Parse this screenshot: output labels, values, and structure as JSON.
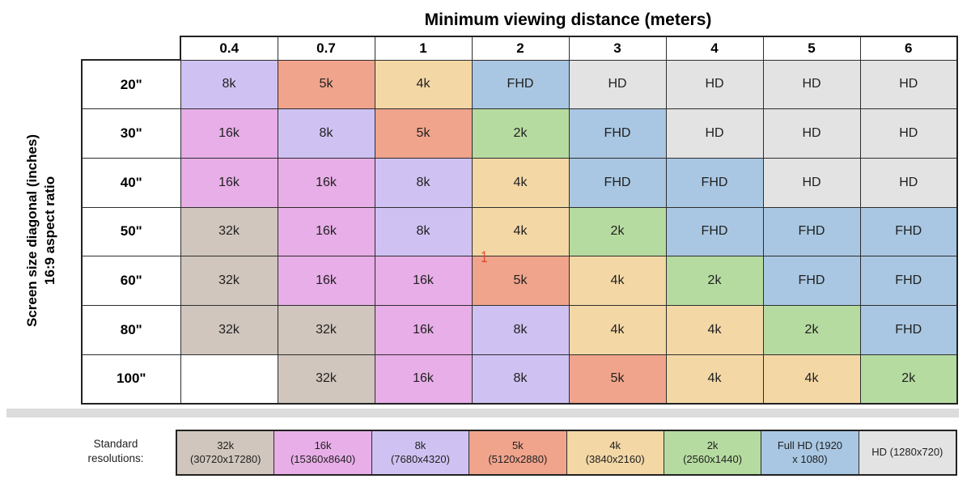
{
  "title": "Minimum viewing distance (meters)",
  "y_axis": {
    "line1": "Screen size diagonal (inches)",
    "line2": "16:9 aspect ratio"
  },
  "legend_label": "Standard\nresolutions:",
  "chart_data": {
    "type": "heatmap",
    "title": "Minimum viewing distance (meters)",
    "x_axis_label": "Minimum viewing distance (meters)",
    "y_axis_label": "Screen size diagonal (inches), 16:9 aspect ratio",
    "columns": [
      "0.4",
      "0.7",
      "1",
      "2",
      "3",
      "4",
      "5",
      "6"
    ],
    "rows": [
      "20\"",
      "30\"",
      "40\"",
      "50\"",
      "60\"",
      "80\"",
      "100\""
    ],
    "values": [
      [
        "8k",
        "5k",
        "4k",
        "FHD",
        "HD",
        "HD",
        "HD",
        "HD"
      ],
      [
        "16k",
        "8k",
        "5k",
        "2k",
        "FHD",
        "HD",
        "HD",
        "HD"
      ],
      [
        "16k",
        "16k",
        "8k",
        "4k",
        "FHD",
        "FHD",
        "HD",
        "HD"
      ],
      [
        "32k",
        "16k",
        "8k",
        "4k",
        "2k",
        "FHD",
        "FHD",
        "FHD"
      ],
      [
        "32k",
        "16k",
        "16k",
        "5k",
        "4k",
        "2k",
        "FHD",
        "FHD"
      ],
      [
        "32k",
        "32k",
        "16k",
        "8k",
        "4k",
        "4k",
        "2k",
        "FHD"
      ],
      [
        "",
        "32k",
        "16k",
        "8k",
        "5k",
        "4k",
        "4k",
        "2k"
      ]
    ],
    "palette": {
      "32k": "#d0c6bd",
      "16k": "#e7aee7",
      "8k": "#cfc2f2",
      "5k": "#f0a48c",
      "4k": "#f3d7a5",
      "2k": "#b6dba1",
      "FHD": "#a9c7e2",
      "HD": "#e3e3e3",
      "": "#ffffff"
    },
    "legend_items": [
      {
        "key": "32k",
        "label": "32k\n(30720x17280)"
      },
      {
        "key": "16k",
        "label": "16k\n(15360x8640)"
      },
      {
        "key": "8k",
        "label": "8k\n(7680x4320)"
      },
      {
        "key": "5k",
        "label": "5k\n(5120x2880)"
      },
      {
        "key": "4k",
        "label": "4k\n(3840x2160)"
      },
      {
        "key": "2k",
        "label": "2k\n(2560x1440)"
      },
      {
        "key": "FHD",
        "label": "Full HD (1920\nx 1080)"
      },
      {
        "key": "HD",
        "label": "HD (1280x720)"
      }
    ],
    "annotation": {
      "text": "1",
      "color": "#dd4b32"
    }
  }
}
